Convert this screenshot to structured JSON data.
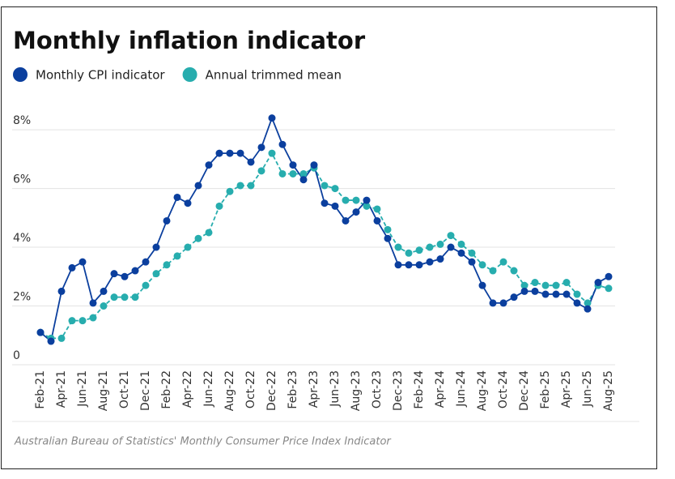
{
  "chart_data": {
    "type": "line",
    "title": "Monthly inflation indicator",
    "source": "Australian Bureau of Statistics' Monthly Consumer Price Index Indicator",
    "categories": [
      "Feb-21",
      null,
      "Apr-21",
      null,
      "Jun-21",
      null,
      "Aug-21",
      null,
      "Oct-21",
      null,
      "Dec-21",
      null,
      "Feb-22",
      null,
      "Apr-22",
      null,
      "Jun-22",
      null,
      "Aug-22",
      null,
      "Oct-22",
      null,
      "Dec-22",
      null,
      "Feb-23",
      null,
      "Apr-23",
      null,
      "Jun-23",
      null,
      "Aug-23",
      null,
      "Oct-23",
      null,
      "Dec-23",
      null,
      "Feb-24",
      null,
      "Apr-24",
      null,
      "Jun-24",
      null,
      "Aug-24",
      null,
      "Oct-24",
      null,
      "Dec-24",
      null,
      "Feb-25",
      null,
      "Apr-25",
      null,
      "Jun-25",
      null,
      "Aug-25"
    ],
    "series": [
      {
        "name": "Monthly CPI indicator",
        "color": "#0b3f9e",
        "values": [
          1.1,
          0.8,
          2.5,
          3.3,
          3.5,
          2.1,
          2.5,
          3.1,
          3.0,
          3.2,
          3.5,
          4.0,
          4.9,
          5.7,
          5.5,
          6.1,
          6.8,
          7.2,
          7.2,
          7.2,
          6.9,
          7.4,
          8.4,
          7.5,
          6.8,
          6.3,
          6.8,
          5.5,
          5.4,
          4.9,
          5.2,
          5.6,
          4.9,
          4.3,
          3.4,
          3.4,
          3.4,
          3.5,
          3.6,
          4.0,
          3.8,
          3.5,
          2.7,
          2.1,
          2.1,
          2.3,
          2.5,
          2.5,
          2.4,
          2.4,
          2.4,
          2.1,
          1.9,
          2.8,
          3.0
        ]
      },
      {
        "name": "Annual trimmed mean",
        "color": "#27adae",
        "values": [
          1.1,
          0.9,
          0.9,
          1.5,
          1.5,
          1.6,
          2.0,
          2.3,
          2.3,
          2.3,
          2.7,
          3.1,
          3.4,
          3.7,
          4.0,
          4.3,
          4.5,
          5.4,
          5.9,
          6.1,
          6.1,
          6.6,
          7.2,
          6.5,
          6.5,
          6.5,
          6.7,
          6.1,
          6.0,
          5.6,
          5.6,
          5.4,
          5.3,
          4.6,
          4.0,
          3.8,
          3.9,
          4.0,
          4.1,
          4.4,
          4.1,
          3.8,
          3.4,
          3.2,
          3.5,
          3.2,
          2.7,
          2.8,
          2.7,
          2.7,
          2.8,
          2.4,
          2.1,
          2.7,
          2.6
        ]
      }
    ],
    "ylim": [
      0,
      8.5
    ],
    "yticks": [
      0,
      {
        "value": 2,
        "label": "2%"
      },
      {
        "value": 4,
        "label": "4%"
      },
      {
        "value": 6,
        "label": "6%"
      },
      {
        "value": 8,
        "label": "8%"
      }
    ],
    "grid": true
  }
}
